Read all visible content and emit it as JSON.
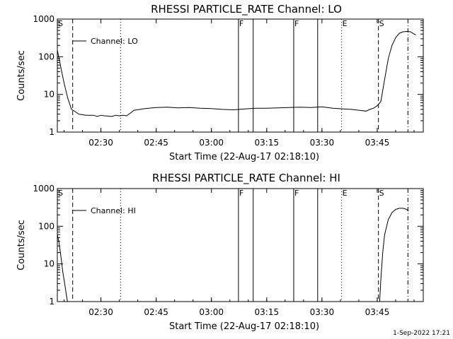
{
  "footer": {
    "timestamp": "1-Sep-2022 17:21"
  },
  "chart_data": [
    {
      "type": "line",
      "title": "RHESSI PARTICLE_RATE Channel: LO",
      "xlabel": "Start Time (22-Aug-17 02:18:10)",
      "ylabel": "Counts/sec",
      "yscale": "log",
      "ylim": [
        1,
        1000
      ],
      "xlim": [
        "02:18:10",
        "03:57:30"
      ],
      "x_ticks": [
        "02:30",
        "02:45",
        "03:00",
        "03:15",
        "03:30",
        "03:45"
      ],
      "y_ticks": [
        "1",
        "10",
        "100",
        "1000"
      ],
      "legend": {
        "label": "Channel: LO",
        "position": "top-left"
      },
      "series": [
        {
          "name": "Channel: LO",
          "x": [
            "02:18:10",
            "02:19:00",
            "02:20:00",
            "02:21:00",
            "02:22:00",
            "02:23:00",
            "02:24:00",
            "02:26:00",
            "02:28:00",
            "02:29:00",
            "02:30:00",
            "02:31:00",
            "02:33:00",
            "02:34:00",
            "02:35:00",
            "02:36:00",
            "02:37:00",
            "02:38:00",
            "02:39:00",
            "02:42:00",
            "02:45:00",
            "02:48:00",
            "02:51:00",
            "02:54:00",
            "02:57:00",
            "03:00:00",
            "03:03:00",
            "03:06:00",
            "03:09:00",
            "03:12:00",
            "03:15:00",
            "03:18:00",
            "03:21:00",
            "03:24:00",
            "03:27:00",
            "03:30:00",
            "03:33:00",
            "03:36:00",
            "03:38:00",
            "03:40:00",
            "03:42:00",
            "03:43:00",
            "03:44:00",
            "03:45:00",
            "03:46:00",
            "03:47:00",
            "03:48:00",
            "03:49:00",
            "03:50:00",
            "03:51:00",
            "03:52:00",
            "03:53:00",
            "03:54:00",
            "03:55:00",
            "03:55:30"
          ],
          "values": [
            150,
            60,
            20,
            8,
            4,
            3.5,
            3,
            2.8,
            2.8,
            2.6,
            2.8,
            2.7,
            2.6,
            2.8,
            2.7,
            2.8,
            2.7,
            3.2,
            3.8,
            4.2,
            4.5,
            4.6,
            4.4,
            4.5,
            4.3,
            4.2,
            4.0,
            3.9,
            4.1,
            4.3,
            4.3,
            4.4,
            4.5,
            4.6,
            4.5,
            4.7,
            4.3,
            4.1,
            4.0,
            3.8,
            3.6,
            4.0,
            4.3,
            5.0,
            6.5,
            25,
            90,
            200,
            320,
            420,
            460,
            470,
            460,
            400,
            380
          ]
        }
      ],
      "markers": [
        {
          "time": "02:18:10",
          "label": "S",
          "style": "dashed"
        },
        {
          "time": "02:22:20",
          "label": "",
          "style": "dashed"
        },
        {
          "time": "02:35:20",
          "label": "",
          "style": "dotted"
        },
        {
          "time": "03:07:20",
          "label": "F",
          "style": "solid"
        },
        {
          "time": "03:11:20",
          "label": "",
          "style": "solid"
        },
        {
          "time": "03:22:20",
          "label": "F",
          "style": "solid"
        },
        {
          "time": "03:28:50",
          "label": "",
          "style": "solid"
        },
        {
          "time": "03:35:20",
          "label": "E",
          "style": "dotted"
        },
        {
          "time": "03:45:20",
          "label": "S",
          "style": "dashed"
        },
        {
          "time": "03:53:20",
          "label": "",
          "style": "dashdot"
        }
      ]
    },
    {
      "type": "line",
      "title": "RHESSI PARTICLE_RATE Channel: HI",
      "xlabel": "Start Time (22-Aug-17 02:18:10)",
      "ylabel": "Counts/sec",
      "yscale": "log",
      "ylim": [
        1,
        1000
      ],
      "xlim": [
        "02:18:10",
        "03:57:30"
      ],
      "x_ticks": [
        "02:30",
        "02:45",
        "03:00",
        "03:15",
        "03:30",
        "03:45"
      ],
      "y_ticks": [
        "1",
        "10",
        "100",
        "1000"
      ],
      "legend": {
        "label": "Channel: HI",
        "position": "top-left"
      },
      "series": [
        {
          "name": "Channel: HI",
          "segments": [
            {
              "x": [
                "02:18:10",
                "02:18:40",
                "02:19:10",
                "02:19:40",
                "02:20:10",
                "02:20:40",
                "02:20:55"
              ],
              "values": [
                60,
                35,
                15,
                6,
                3,
                1.4,
                1.0
              ]
            },
            {
              "x": [
                "03:45:40",
                "03:46:00",
                "03:46:30",
                "03:47:00",
                "03:48:00",
                "03:49:00",
                "03:50:00",
                "03:51:00",
                "03:52:00",
                "03:53:00",
                "03:53:30"
              ],
              "values": [
                1.0,
                4,
                20,
                60,
                150,
                230,
                280,
                300,
                300,
                280,
                250
              ]
            }
          ]
        }
      ],
      "markers": [
        {
          "time": "02:18:10",
          "label": "S",
          "style": "dashed"
        },
        {
          "time": "02:22:20",
          "label": "",
          "style": "dashed"
        },
        {
          "time": "02:35:20",
          "label": "",
          "style": "dotted"
        },
        {
          "time": "03:07:20",
          "label": "F",
          "style": "solid"
        },
        {
          "time": "03:11:20",
          "label": "",
          "style": "solid"
        },
        {
          "time": "03:22:20",
          "label": "F",
          "style": "solid"
        },
        {
          "time": "03:28:50",
          "label": "",
          "style": "solid"
        },
        {
          "time": "03:35:20",
          "label": "E",
          "style": "dotted"
        },
        {
          "time": "03:45:20",
          "label": "S",
          "style": "dashed"
        },
        {
          "time": "03:53:20",
          "label": "",
          "style": "dashdot"
        }
      ]
    }
  ]
}
